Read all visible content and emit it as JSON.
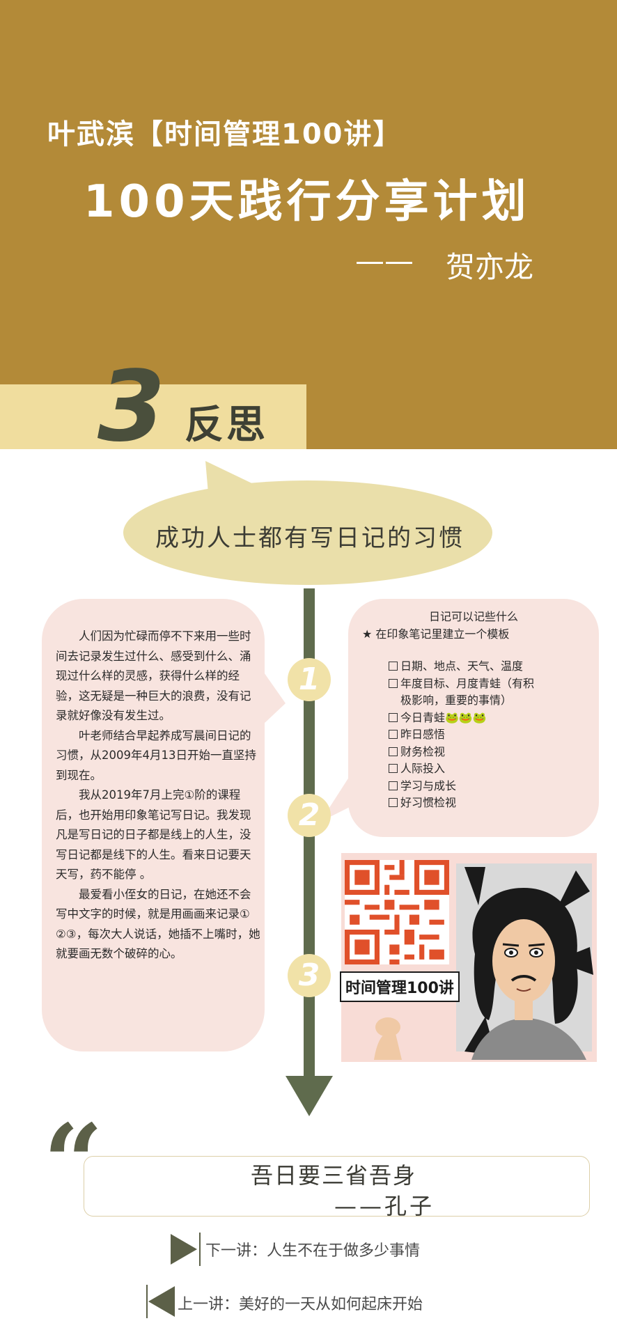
{
  "header": {
    "series_title": "叶武滨【时间管理100讲】",
    "main_title": "100天践行分享计划",
    "author_dash": "——",
    "author_name": "贺亦龙"
  },
  "section": {
    "number": "3",
    "title": "反思"
  },
  "bubble": {
    "text": "成功人士都有写日记的习惯"
  },
  "timeline": {
    "nodes": [
      "1",
      "2",
      "3"
    ]
  },
  "left_card": {
    "paragraphs": [
      "人们因为忙碌而停不下来用一些时间去记录发生过什么、感受到什么、涌现过什么样的灵感，获得什么样的经验，这无疑是一种巨大的浪费，没有记录就好像没有发生过。",
      "叶老师结合早起养成写晨间日记的习惯，从2009年4月13日开始一直坚持到现在。",
      "我从2019年7月上完①阶的课程后，也开始用印象笔记写日记。我发现凡是写日记的日子都是线上的人生，没写日记都是线下的人生。看来日记要天天写，药不能停 。",
      "最爱看小侄女的日记，在她还不会写中文字的时候，就是用画画来记录① ②③，每次大人说话，她插不上嘴时，她就要画无数个破碎的心。"
    ]
  },
  "right_card": {
    "title": "日记可以记些什么",
    "subtitle": "★ 在印象笔记里建立一个模板",
    "items": [
      "日期、地点、天气、温度",
      "年度目标、月度青蛙（有积",
      "今日青蛙🐸🐸🐸",
      "昨日感悟",
      "财务检视",
      "人际投入",
      "学习与成长",
      "好习惯检视"
    ],
    "item2_cont": "极影响，重要的事情）"
  },
  "poster": {
    "label": "时间管理100讲"
  },
  "quote": {
    "line1": "吾日要三省吾身",
    "line2": "——孔子"
  },
  "nav": {
    "next": "下一讲：人生不在于做多少事情",
    "prev": "上一讲：美好的一天从如何起床开始"
  },
  "colors": {
    "header_bg": "#b38a38",
    "accent_olive": "#5f6b4d",
    "card_pink": "#f8e4df",
    "bubble_yellow": "#eadfaa"
  }
}
